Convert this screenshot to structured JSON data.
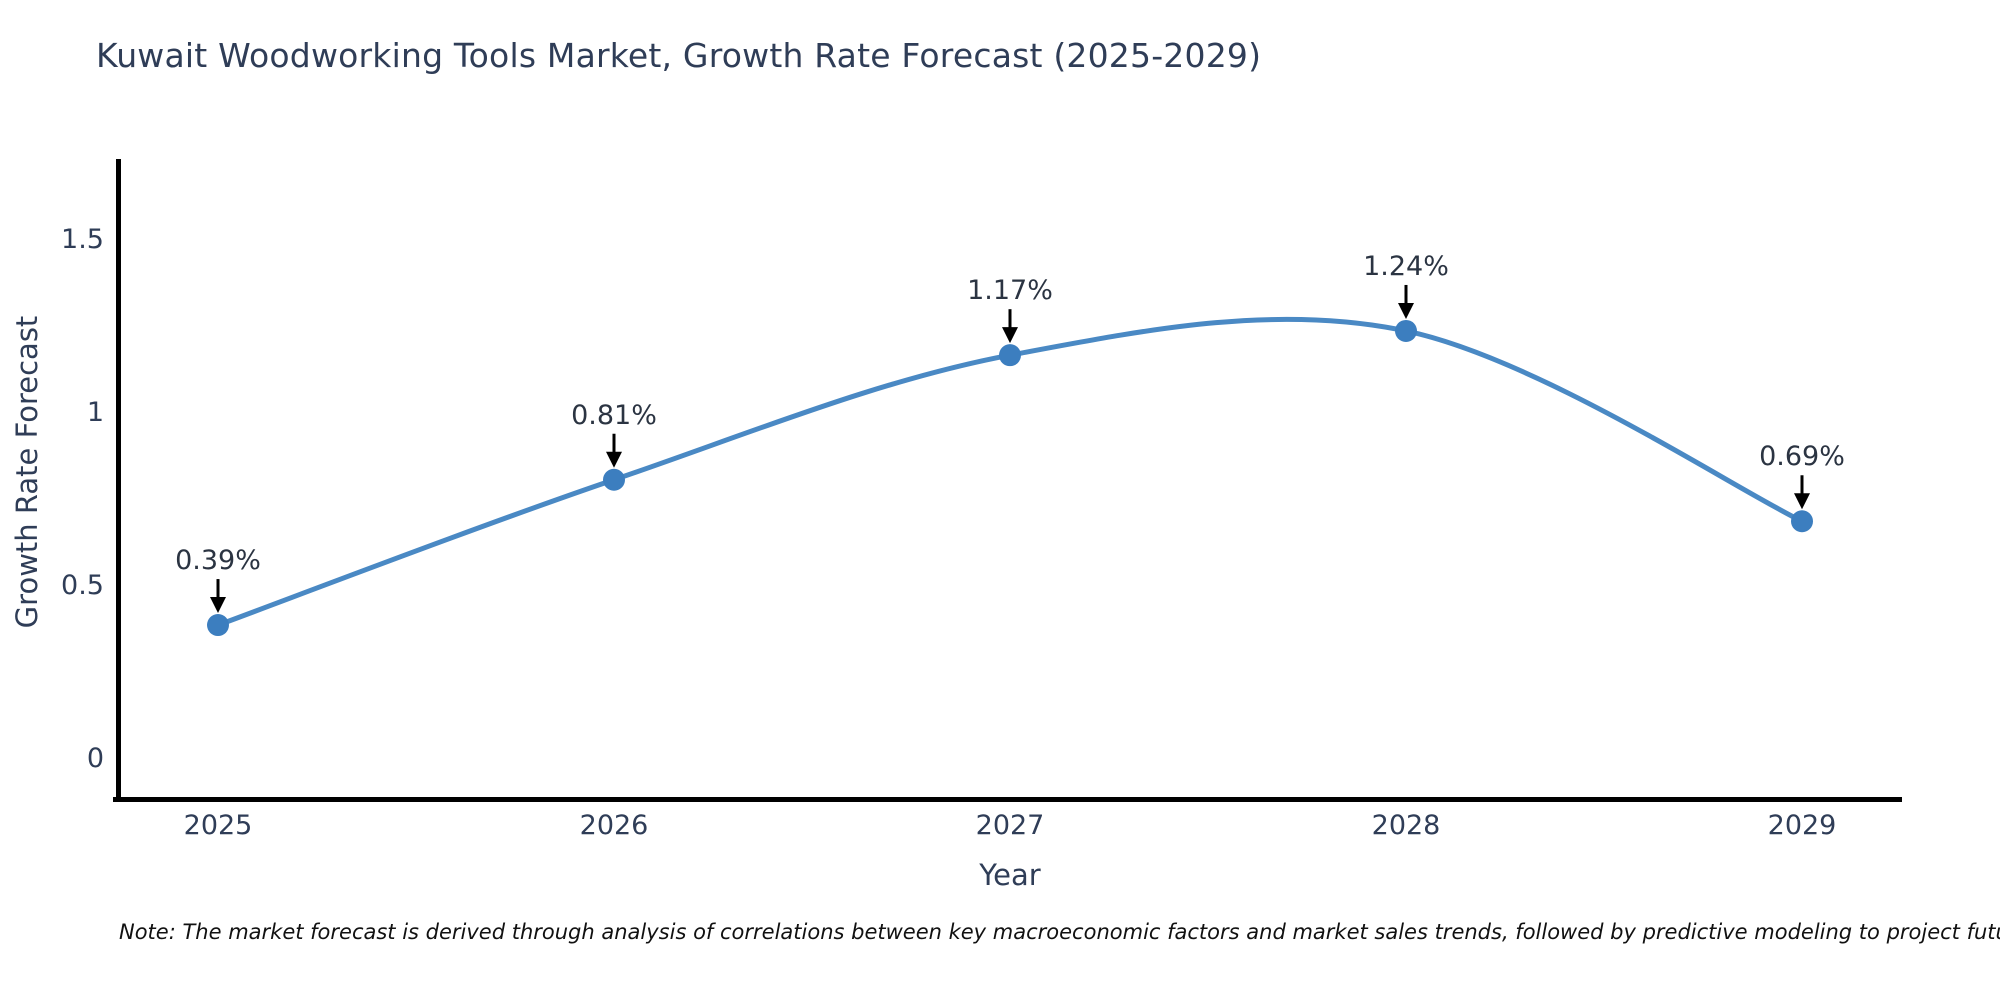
{
  "title": "Kuwait Woodworking Tools Market, Growth Rate Forecast (2025-2029)",
  "note": "Note: The market forecast is derived through analysis of correlations between key macroeconomic factors and market sales trends, followed by predictive modeling to project future sales",
  "chart_data": {
    "type": "line",
    "title": "Kuwait Woodworking Tools Market, Growth Rate Forecast (2025-2029)",
    "xlabel": "Year",
    "ylabel": "Growth Rate Forecast",
    "x": [
      2025,
      2026,
      2027,
      2028,
      2029
    ],
    "categories": [
      "2025",
      "2026",
      "2027",
      "2028",
      "2029"
    ],
    "series": [
      {
        "name": "Growth Rate Forecast",
        "values": [
          0.39,
          0.81,
          1.17,
          1.24,
          0.69
        ]
      }
    ],
    "point_labels": [
      "0.39%",
      "0.81%",
      "1.17%",
      "1.24%",
      "0.69%"
    ],
    "yticks": [
      0,
      0.5,
      1,
      1.5
    ],
    "ytick_labels": [
      "0",
      "0.5",
      "1",
      "1.5"
    ],
    "xlim": [
      2024.75,
      2029.26
    ],
    "ylim": [
      -0.12,
      1.73
    ],
    "grid": false,
    "legend_position": "none",
    "line_style": "smooth-spline",
    "marker": "circle",
    "annotation_style": "black-down-arrow",
    "colors": {
      "line": "#4a89c4",
      "marker": "#3c7ebf",
      "arrow": "#000000",
      "axis": "#000000",
      "text": "#2f3d57",
      "background": "#ffffff"
    }
  }
}
